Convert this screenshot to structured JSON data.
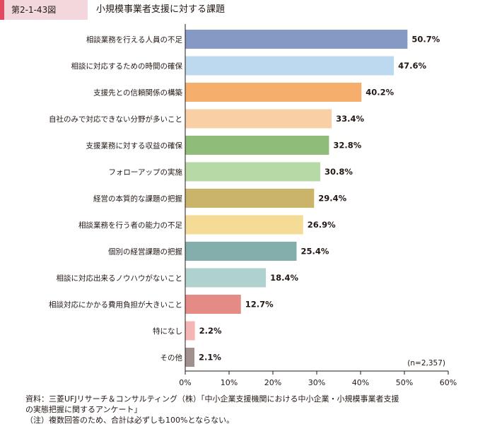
{
  "figure": {
    "number": "第2-1-43図",
    "title": "小規模事業者支援に対する課題"
  },
  "chart_data": {
    "type": "bar",
    "orientation": "horizontal",
    "categories": [
      "相談業務を行える人員の不足",
      "相談に対応するための時間の確保",
      "支援先との信頼関係の構築",
      "自社のみで対応できない分野が多いこと",
      "支援業務に対する収益の確保",
      "フォローアップの実施",
      "経営の本質的な課題の把握",
      "相談業務を行う者の能力の不足",
      "個別の経営課題の把握",
      "相談に対応出来るノウハウがないこと",
      "相談対応にかかる費用負担が大きいこと",
      "特になし",
      "その他"
    ],
    "values": [
      50.7,
      47.6,
      40.2,
      33.4,
      32.8,
      30.8,
      29.4,
      26.9,
      25.4,
      18.4,
      12.7,
      2.2,
      2.1
    ],
    "value_labels": [
      "50.7%",
      "47.6%",
      "40.2%",
      "33.4%",
      "32.8%",
      "30.8%",
      "29.4%",
      "26.9%",
      "25.4%",
      "18.4%",
      "12.7%",
      "2.2%",
      "2.1%"
    ],
    "colors": [
      "#8499c4",
      "#bcd9ef",
      "#f5ae6b",
      "#f9cfa6",
      "#8fbc78",
      "#b7d9a6",
      "#c9b46a",
      "#f4dc96",
      "#84aeab",
      "#afd2cf",
      "#e58b86",
      "#f4b5b4",
      "#a0918e"
    ],
    "xlim": [
      0,
      60
    ],
    "xticks": [
      "0%",
      "10%",
      "20%",
      "30%",
      "40%",
      "50%",
      "60%"
    ],
    "xtick_values": [
      0,
      10,
      20,
      30,
      40,
      50,
      60
    ],
    "annotation": "(n=2,357)",
    "grid": false,
    "legend": "none"
  },
  "footer": {
    "source_line1": "資料：三菱UFJリサーチ＆コンサルティング（株）「中小企業支援機関における中小企業・小規模事業者支援",
    "source_line2": "の実態把握に関するアンケート」",
    "note": "（注）複数回答のため、合計は必ずしも100%とならない。"
  }
}
